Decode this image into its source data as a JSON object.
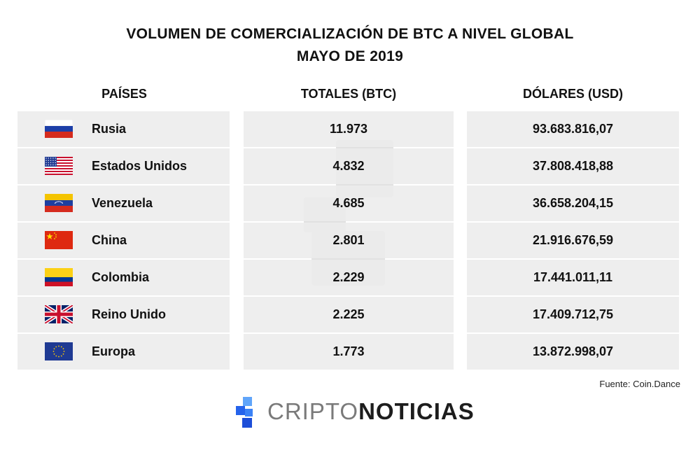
{
  "title": {
    "line1": "VOLUMEN DE COMERCIALIZACIÓN DE BTC A NIVEL GLOBAL",
    "line2": "MAYO DE 2019"
  },
  "chart_data": {
    "type": "table",
    "columns": [
      "PAÍSES",
      "TOTALES (BTC)",
      "DÓLARES (USD)"
    ],
    "rows": [
      {
        "country": "Rusia",
        "flag": "russia-flag",
        "btc": "11.973",
        "usd": "93.683.816,07"
      },
      {
        "country": "Estados Unidos",
        "flag": "usa-flag",
        "btc": "4.832",
        "usd": "37.808.418,88"
      },
      {
        "country": "Venezuela",
        "flag": "venezuela-flag",
        "btc": "4.685",
        "usd": "36.658.204,15"
      },
      {
        "country": "China",
        "flag": "china-flag",
        "btc": "2.801",
        "usd": "21.916.676,59"
      },
      {
        "country": "Colombia",
        "flag": "colombia-flag",
        "btc": "2.229",
        "usd": "17.441.011,11"
      },
      {
        "country": "Reino Unido",
        "flag": "uk-flag",
        "btc": "2.225",
        "usd": "17.409.712,75"
      },
      {
        "country": "Europa",
        "flag": "eu-flag",
        "btc": "1.773",
        "usd": "13.872.998,07"
      }
    ]
  },
  "source": "Fuente: Coin.Dance",
  "logo": {
    "part1": "CRIPTO",
    "part2": "NOTICIAS",
    "brand_color": "#3b82f6"
  }
}
